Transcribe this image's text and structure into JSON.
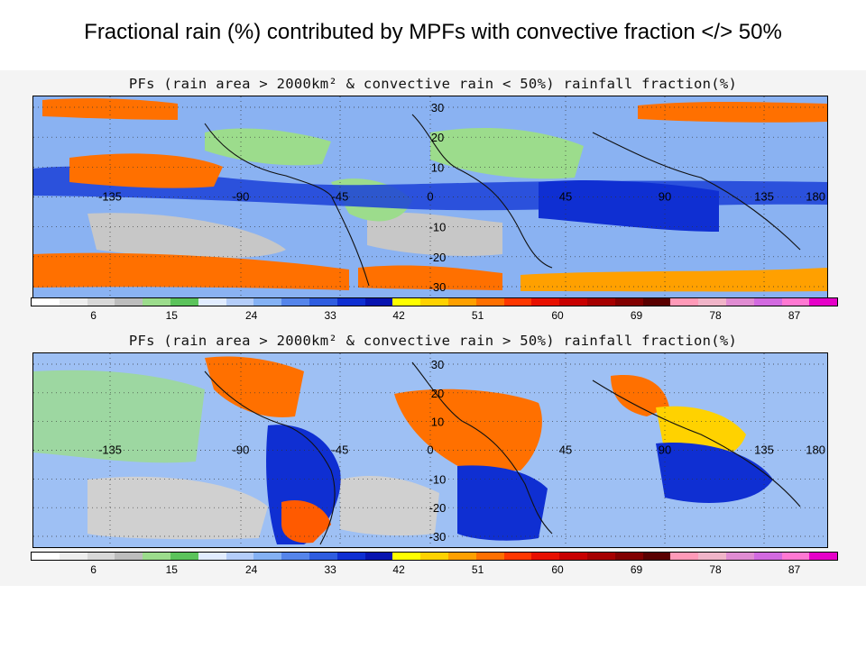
{
  "slide_title": "Fractional rain (%) contributed by MPFs with convective fraction </> 50%",
  "colorbar": {
    "colors": [
      "#ffffff",
      "#eeeeee",
      "#d8d8d8",
      "#bdbdbd",
      "#9cdc8c",
      "#5bc35b",
      "#e1ecff",
      "#b4cdf9",
      "#84b1f4",
      "#5585eb",
      "#2f5de0",
      "#0f2fd2",
      "#0814b0",
      "#ffff00",
      "#ffd200",
      "#ffa000",
      "#ff7000",
      "#ff3800",
      "#e81000",
      "#c80000",
      "#a60000",
      "#820000",
      "#5a0000",
      "#ff9ab8",
      "#f0b4c8",
      "#e08cd2",
      "#d26ae0",
      "#ff78d2",
      "#e600c8"
    ],
    "ticks": [
      "6",
      "15",
      "24",
      "33",
      "42",
      "51",
      "60",
      "69",
      "78",
      "87"
    ]
  },
  "panels": [
    {
      "title": "PFs (rain area > 2000km² & convective rain < 50%) rainfall fraction(%)",
      "lon_labels": [
        "-135",
        "-90",
        "-45",
        "0",
        "45",
        "90",
        "135",
        "180"
      ],
      "lat_labels": [
        "30",
        "20",
        "10",
        "0",
        "-10",
        "-20",
        "-30"
      ]
    },
    {
      "title": "PFs (rain area > 2000km² & convective rain > 50%) rainfall fraction(%)",
      "lon_labels": [
        "-135",
        "-90",
        "-45",
        "0",
        "45",
        "90",
        "135",
        "180"
      ],
      "lat_labels": [
        "30",
        "20",
        "10",
        "0",
        "-10",
        "-20",
        "-30"
      ]
    }
  ]
}
